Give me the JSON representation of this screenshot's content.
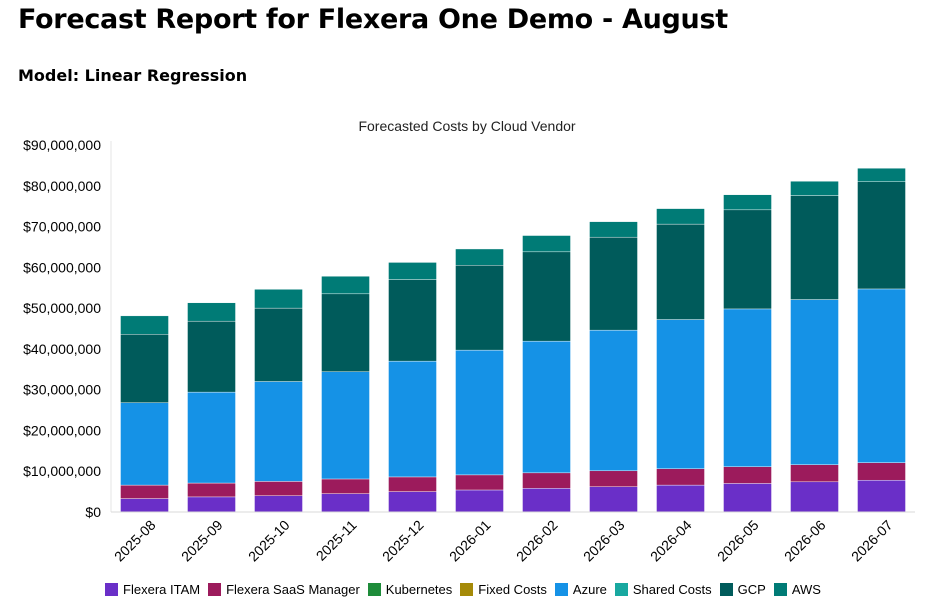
{
  "report": {
    "title": "Forecast Report for Flexera One Demo - August",
    "model": "Model: Linear Regression"
  },
  "chart_data": {
    "type": "bar",
    "stacked": true,
    "title": "Forecasted Costs by Cloud Vendor",
    "xlabel": "",
    "ylabel": "",
    "ylim": [
      0,
      90000000
    ],
    "yticks": [
      "$0",
      "$10,000,000",
      "$20,000,000",
      "$30,000,000",
      "$40,000,000",
      "$50,000,000",
      "$60,000,000",
      "$70,000,000",
      "$80,000,000",
      "$90,000,000"
    ],
    "categories": [
      "2025-08",
      "2025-09",
      "2025-10",
      "2025-11",
      "2025-12",
      "2026-01",
      "2026-02",
      "2026-03",
      "2026-04",
      "2026-05",
      "2026-06",
      "2026-07"
    ],
    "legend_position": "bottom",
    "grid": false,
    "series": [
      {
        "name": "Flexera ITAM",
        "color": "#6a2fc8",
        "values": [
          3300000,
          3700000,
          4000000,
          4500000,
          5000000,
          5400000,
          5800000,
          6200000,
          6600000,
          7000000,
          7400000,
          7800000
        ]
      },
      {
        "name": "Flexera SaaS Manager",
        "color": "#9c1b5c",
        "values": [
          3300000,
          3400000,
          3500000,
          3600000,
          3600000,
          3700000,
          3800000,
          3900000,
          4000000,
          4100000,
          4200000,
          4300000
        ]
      },
      {
        "name": "Kubernetes",
        "color": "#1e8c3a",
        "values": [
          0,
          0,
          0,
          0,
          0,
          0,
          0,
          0,
          0,
          0,
          0,
          0
        ]
      },
      {
        "name": "Fixed Costs",
        "color": "#a58a08",
        "values": [
          0,
          0,
          0,
          0,
          0,
          0,
          0,
          0,
          0,
          0,
          0,
          0
        ]
      },
      {
        "name": "Azure",
        "color": "#1592e6",
        "values": [
          20200000,
          22300000,
          24500000,
          26300000,
          28400000,
          30600000,
          32300000,
          34500000,
          36600000,
          38700000,
          40500000,
          42600000
        ]
      },
      {
        "name": "Shared Costs",
        "color": "#18a8a0",
        "values": [
          0,
          0,
          0,
          0,
          0,
          0,
          0,
          0,
          0,
          0,
          0,
          0
        ]
      },
      {
        "name": "GCP",
        "color": "#005b5b",
        "values": [
          16800000,
          17400000,
          18000000,
          19100000,
          20000000,
          20800000,
          21900000,
          22800000,
          23400000,
          24300000,
          25500000,
          26300000
        ]
      },
      {
        "name": "AWS",
        "color": "#007b76",
        "values": [
          4500000,
          4500000,
          4600000,
          4300000,
          4200000,
          4000000,
          4000000,
          3800000,
          3800000,
          3700000,
          3500000,
          3300000
        ]
      }
    ]
  }
}
